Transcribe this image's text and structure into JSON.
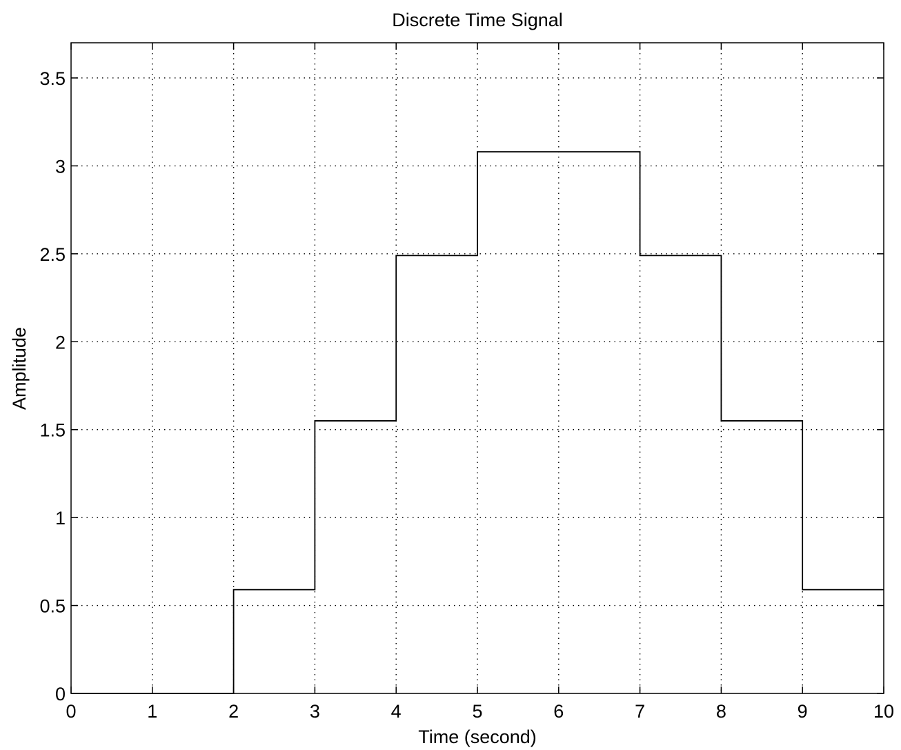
{
  "chart_data": {
    "type": "line",
    "style": "step",
    "title": "Discrete Time Signal",
    "xlabel": "Time (second)",
    "ylabel": "Amplitude",
    "xlim": [
      0,
      10
    ],
    "ylim": [
      0,
      3.7
    ],
    "xticks": [
      0,
      1,
      2,
      3,
      4,
      5,
      6,
      7,
      8,
      9,
      10
    ],
    "xtick_labels": [
      "0",
      "1",
      "2",
      "3",
      "4",
      "5",
      "6",
      "7",
      "8",
      "9",
      "10"
    ],
    "yticks": [
      0,
      0.5,
      1,
      1.5,
      2,
      2.5,
      3,
      3.5
    ],
    "ytick_labels": [
      "0",
      "0.5",
      "1",
      "1.5",
      "2",
      "2.5",
      "3",
      "3.5"
    ],
    "grid": true,
    "series": [
      {
        "x": [
          0,
          1,
          2,
          3,
          4,
          5,
          6,
          7,
          8,
          9,
          10
        ],
        "y": [
          0,
          0,
          0.59,
          1.55,
          2.49,
          3.08,
          3.08,
          2.49,
          1.55,
          0.59,
          0.59
        ]
      }
    ],
    "colors": {
      "line": "#000000",
      "grid": "#000000",
      "axes": "#000000"
    }
  }
}
